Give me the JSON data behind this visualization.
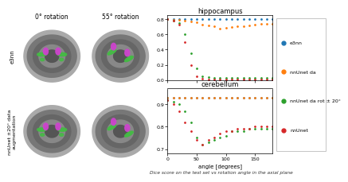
{
  "col_labels": [
    "0° rotation",
    "55° rotation"
  ],
  "row_labels_0": "e3nn",
  "row_labels_1": "nnUnet ±20° data\naugmentation",
  "hippocampus_title": "hippocampus",
  "cerebellum_title": "cerebellum",
  "xlabel": "angle [degrees]",
  "caption": "Dice score on the test set vs rotation angle in the axial plane",
  "legend_labels": [
    "e3nn",
    "nnUnet da",
    "nnUnet da rot ± 20°",
    "nnUnet"
  ],
  "legend_colors": [
    "#1f77b4",
    "#ff7f0e",
    "#2ca02c",
    "#d62728"
  ],
  "angles": [
    0,
    10,
    20,
    30,
    40,
    50,
    60,
    70,
    80,
    90,
    100,
    110,
    120,
    130,
    140,
    150,
    160,
    170,
    180
  ],
  "hippo_e3nn": [
    0.8,
    0.8,
    0.8,
    0.8,
    0.8,
    0.8,
    0.8,
    0.8,
    0.8,
    0.8,
    0.8,
    0.8,
    0.8,
    0.8,
    0.8,
    0.8,
    0.8,
    0.8,
    0.8
  ],
  "hippo_nnunet_da": [
    0.8,
    0.79,
    0.79,
    0.78,
    0.77,
    0.76,
    0.73,
    0.72,
    0.7,
    0.67,
    0.68,
    0.69,
    0.7,
    0.71,
    0.72,
    0.73,
    0.74,
    0.74,
    0.74
  ],
  "hippo_nnunet_da_rot": [
    0.8,
    0.78,
    0.75,
    0.6,
    0.35,
    0.15,
    0.05,
    0.04,
    0.03,
    0.03,
    0.03,
    0.03,
    0.03,
    0.03,
    0.03,
    0.03,
    0.03,
    0.03,
    0.03
  ],
  "hippo_nnunet": [
    0.8,
    0.78,
    0.73,
    0.5,
    0.2,
    0.05,
    0.02,
    0.01,
    0.01,
    0.01,
    0.01,
    0.01,
    0.01,
    0.01,
    0.01,
    0.01,
    0.01,
    0.01,
    0.01
  ],
  "cereb_e3nn": [
    0.93,
    0.93,
    0.93,
    0.93,
    0.93,
    0.93,
    0.93,
    0.93,
    0.93,
    0.93,
    0.93,
    0.93,
    0.93,
    0.93,
    0.93,
    0.93,
    0.93,
    0.93,
    0.93
  ],
  "cereb_nnunet_da": [
    0.93,
    0.93,
    0.93,
    0.93,
    0.93,
    0.93,
    0.93,
    0.93,
    0.93,
    0.93,
    0.93,
    0.93,
    0.93,
    0.93,
    0.93,
    0.93,
    0.93,
    0.93,
    0.93
  ],
  "cereb_nnunet_da_rot": [
    0.92,
    0.91,
    0.9,
    0.87,
    0.82,
    0.75,
    0.72,
    0.73,
    0.74,
    0.75,
    0.76,
    0.78,
    0.78,
    0.78,
    0.79,
    0.79,
    0.79,
    0.79,
    0.79
  ],
  "cereb_nnunet": [
    0.92,
    0.9,
    0.87,
    0.82,
    0.78,
    0.74,
    0.72,
    0.74,
    0.75,
    0.77,
    0.78,
    0.78,
    0.79,
    0.79,
    0.79,
    0.8,
    0.8,
    0.8,
    0.8
  ],
  "hippo_ylim": [
    0.0,
    0.85
  ],
  "cereb_ylim": [
    0.68,
    0.97
  ],
  "hippo_yticks": [
    0.0,
    0.2,
    0.4,
    0.6,
    0.8
  ],
  "cereb_yticks": [
    0.7,
    0.8,
    0.9
  ],
  "bg_dark": "#1a1a1a",
  "brain_outer": "#777777",
  "brain_mid": "#555555",
  "brain_inner": "#999999",
  "green_color": "#44bb44",
  "magenta_color": "#cc44cc"
}
